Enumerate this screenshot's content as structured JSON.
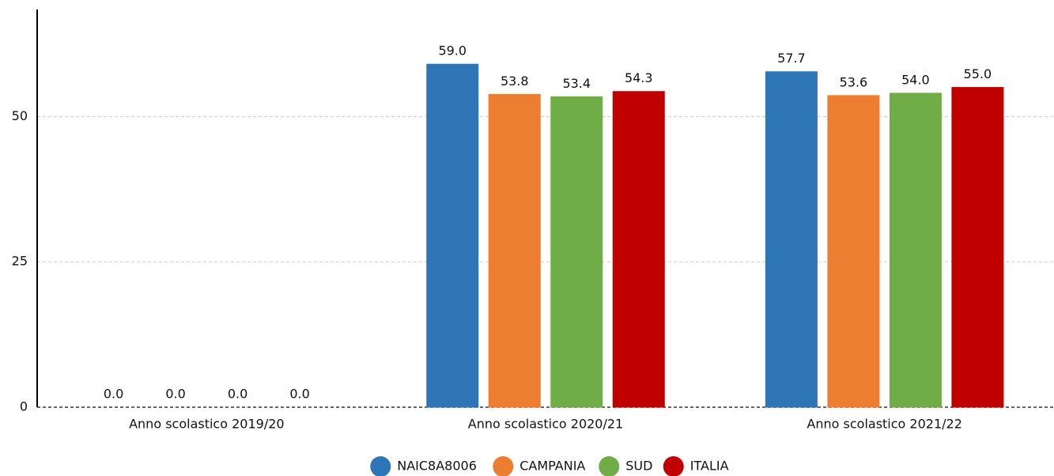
{
  "chart_data": {
    "type": "bar",
    "categories": [
      "Anno scolastico 2019/20",
      "Anno scolastico 2020/21",
      "Anno scolastico 2021/22"
    ],
    "series": [
      {
        "name": "NAIC8A8006",
        "color": "#2e75b6",
        "values": [
          0,
          59,
          57.7
        ],
        "value_labels": [
          "0.0",
          "59.0",
          "57.7"
        ]
      },
      {
        "name": "CAMPANIA",
        "color": "#ed7d31",
        "values": [
          0,
          53.8,
          53.6
        ],
        "value_labels": [
          "0.0",
          "53.8",
          "53.6"
        ]
      },
      {
        "name": "SUD",
        "color": "#70ad47",
        "values": [
          0,
          53.4,
          54
        ],
        "value_labels": [
          "0.0",
          "53.4",
          "54.0"
        ]
      },
      {
        "name": "ITALIA",
        "color": "#c00000",
        "values": [
          0,
          54.3,
          55
        ],
        "value_labels": [
          "0.0",
          "54.3",
          "55.0"
        ]
      }
    ],
    "ylim": [
      0,
      68
    ],
    "yticks": [
      0,
      25,
      50
    ],
    "grid": true,
    "legend": "bottom"
  }
}
